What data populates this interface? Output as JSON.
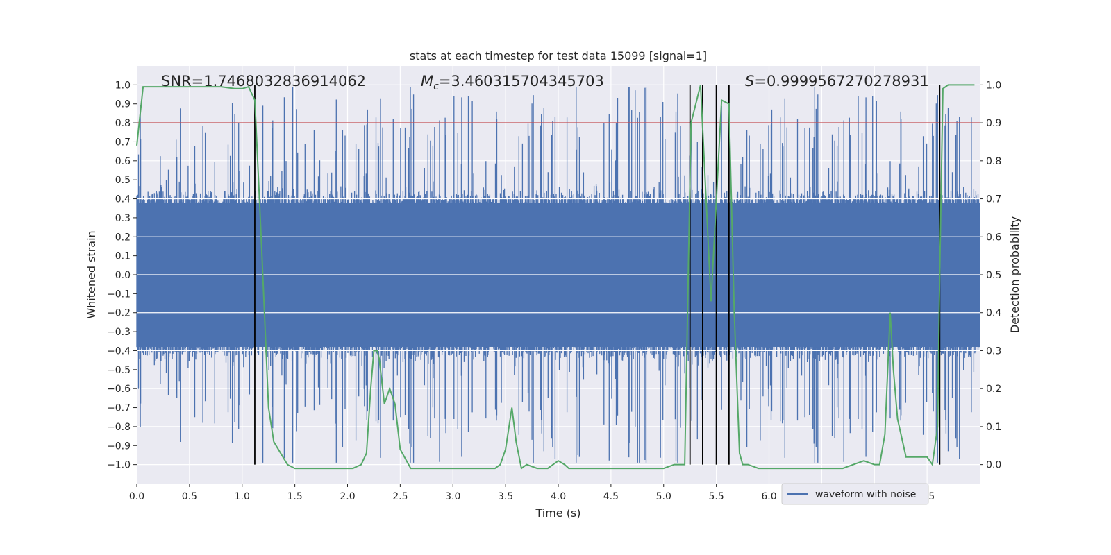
{
  "chart_data": {
    "type": "line",
    "title": "stats at each timestep for test data 15099 [signal=1]",
    "xlabel": "Time (s)",
    "ylabel": "Whitened strain",
    "y2label": "Detection probability",
    "xlim": [
      0.0,
      8.0
    ],
    "ylim": [
      -1.1,
      1.1
    ],
    "y2lim": [
      -0.05,
      1.05
    ],
    "xticks": [
      "0.0",
      "0.5",
      "1.0",
      "1.5",
      "2.0",
      "2.5",
      "3.0",
      "3.5",
      "4.0",
      "4.5",
      "5.0",
      "5.5",
      "6.0",
      "6.5",
      "7.0",
      "7.5"
    ],
    "yticks": [
      "1.0",
      "0.9",
      "0.8",
      "0.7",
      "0.6",
      "0.5",
      "0.4",
      "0.3",
      "0.2",
      "0.1",
      "0.0",
      "−0.1",
      "−0.2",
      "−0.3",
      "−0.4",
      "−0.5",
      "−0.6",
      "−0.7",
      "−0.8",
      "−0.9",
      "−1.0"
    ],
    "y2ticks": [
      "1.0",
      "0.9",
      "0.8",
      "0.7",
      "0.6",
      "0.5",
      "0.4",
      "0.3",
      "0.2",
      "0.1",
      "0.0"
    ],
    "grid": true,
    "legend_position": "lower-right",
    "annotations": {
      "snr": "SNR=1.7468032836914062",
      "mc_symbol": "M",
      "mc_sub": "c",
      "mc_value": "=3.460315704345703",
      "s_symbol": "S",
      "s_value": "=0.9999567270278931"
    },
    "threshold": {
      "value": 0.9,
      "axis": "y2",
      "color": "#c44e52"
    },
    "vertical_lines": [
      1.12,
      5.25,
      5.37,
      5.5,
      5.62,
      7.62
    ],
    "series": [
      {
        "name": "waveform with noise",
        "axis": "y",
        "color": "#4c72b0",
        "style": "dense-noise",
        "typical_amplitude": 0.35,
        "peak_amplitude": 0.99
      },
      {
        "axis": "y2",
        "color": "#55a868",
        "x": [
          0.0,
          0.06,
          0.2,
          0.4,
          0.6,
          0.8,
          0.93,
          1.0,
          1.06,
          1.12,
          1.18,
          1.25,
          1.3,
          1.43,
          1.5,
          1.58,
          1.7,
          1.8,
          1.9,
          2.0,
          2.05,
          2.13,
          2.18,
          2.22,
          2.25,
          2.28,
          2.3,
          2.35,
          2.4,
          2.45,
          2.5,
          2.6,
          2.7,
          2.8,
          3.0,
          3.2,
          3.4,
          3.45,
          3.5,
          3.56,
          3.6,
          3.65,
          3.7,
          3.8,
          3.9,
          4.0,
          4.06,
          4.1,
          4.2,
          4.3,
          4.5,
          4.7,
          4.9,
          5.0,
          5.1,
          5.2,
          5.26,
          5.35,
          5.45,
          5.55,
          5.62,
          5.67,
          5.72,
          5.75,
          5.8,
          5.9,
          6.0,
          6.2,
          6.5,
          6.7,
          6.8,
          6.9,
          7.0,
          7.05,
          7.1,
          7.15,
          7.18,
          7.22,
          7.3,
          7.35,
          7.4,
          7.45,
          7.5,
          7.55,
          7.6,
          7.62,
          7.65,
          7.7,
          7.8,
          7.95
        ],
        "y": [
          0.84,
          0.995,
          0.995,
          0.995,
          0.995,
          0.995,
          0.99,
          0.99,
          0.995,
          0.96,
          0.6,
          0.15,
          0.06,
          0.0,
          -0.01,
          -0.01,
          -0.01,
          -0.01,
          -0.01,
          -0.01,
          -0.01,
          0.0,
          0.03,
          0.2,
          0.3,
          0.3,
          0.28,
          0.16,
          0.2,
          0.16,
          0.04,
          -0.01,
          -0.01,
          -0.01,
          -0.01,
          -0.01,
          -0.01,
          0.0,
          0.04,
          0.15,
          0.06,
          -0.01,
          0.0,
          -0.01,
          -0.01,
          0.01,
          0.0,
          -0.01,
          -0.01,
          -0.01,
          -0.01,
          -0.01,
          -0.01,
          -0.01,
          0.0,
          0.0,
          0.9,
          1.0,
          0.43,
          0.96,
          0.95,
          0.4,
          0.03,
          0.0,
          0.0,
          -0.01,
          -0.01,
          -0.01,
          -0.01,
          -0.01,
          0.0,
          0.01,
          0.0,
          0.0,
          0.08,
          0.4,
          0.25,
          0.12,
          0.02,
          0.02,
          0.02,
          0.02,
          0.02,
          0.0,
          0.1,
          0.5,
          0.99,
          1.0,
          1.0,
          1.0
        ]
      }
    ]
  }
}
